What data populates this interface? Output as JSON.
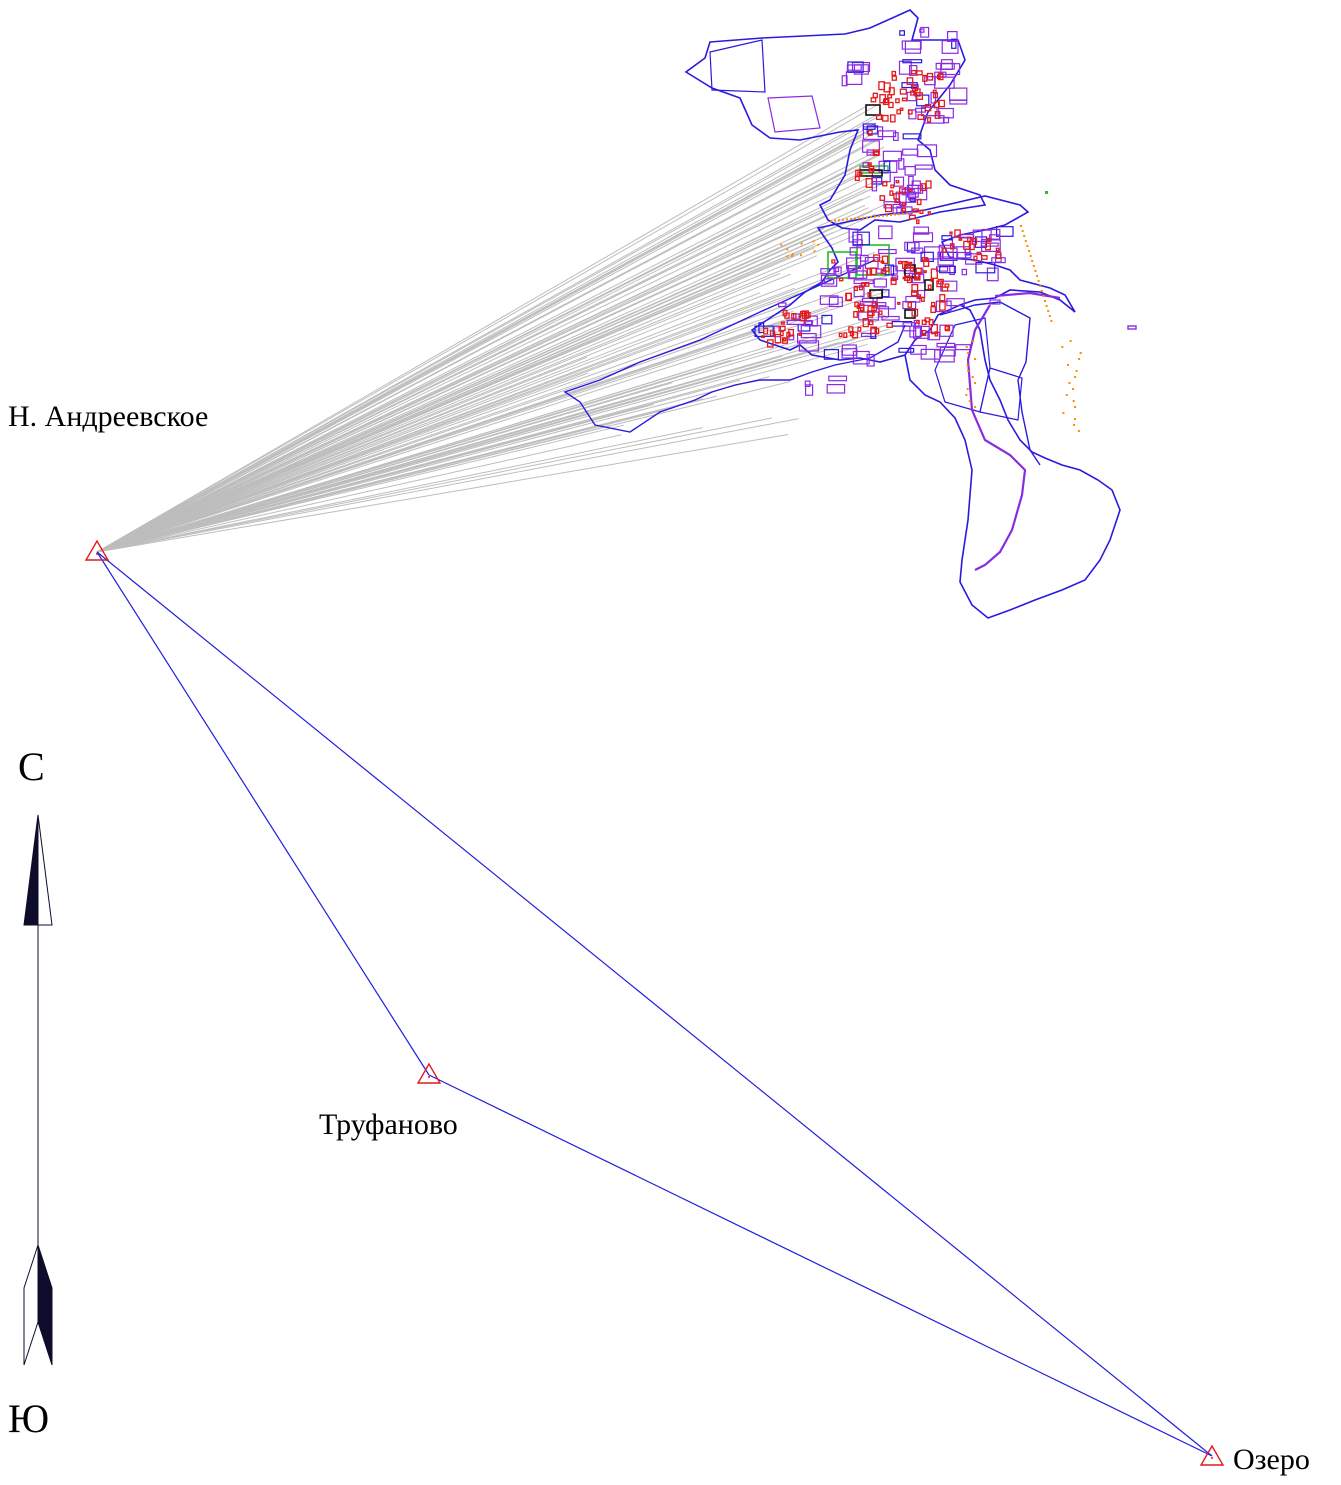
{
  "stations": [
    {
      "id": "andreevskoe",
      "label": "Н. Андреевское"
    },
    {
      "id": "trufanovo",
      "label": "Труфаново"
    },
    {
      "id": "ozero",
      "label": "Озеро"
    }
  ],
  "compass": {
    "north_label": "С",
    "south_label": "Ю"
  },
  "colors": {
    "station_marker": "#e31a1c",
    "traverse_line": "#1f1fe0",
    "observation_ray": "#bdbdbd",
    "boundary": "#2a1ae0",
    "parcels": "#8a2be2",
    "buildings": "#e31a1c",
    "green_areas": "#22c022",
    "orange_points": "#ff8c00",
    "arrow_fill": "#0d0d2b"
  }
}
